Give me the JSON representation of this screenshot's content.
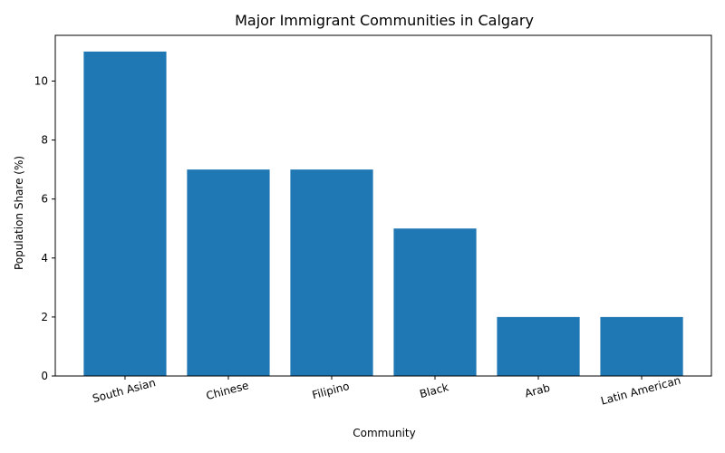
{
  "chart_data": {
    "type": "bar",
    "title": "Major Immigrant Communities in Calgary",
    "xlabel": "Community",
    "ylabel": "Population Share (%)",
    "categories": [
      "South Asian",
      "Chinese",
      "Filipino",
      "Black",
      "Arab",
      "Latin American"
    ],
    "values": [
      11,
      7,
      7,
      5,
      2,
      2
    ],
    "ylim": [
      0,
      11.55
    ],
    "yticks": [
      0,
      2,
      4,
      6,
      8,
      10
    ],
    "bar_color": "#1f77b4",
    "grid": false,
    "legend": false
  }
}
